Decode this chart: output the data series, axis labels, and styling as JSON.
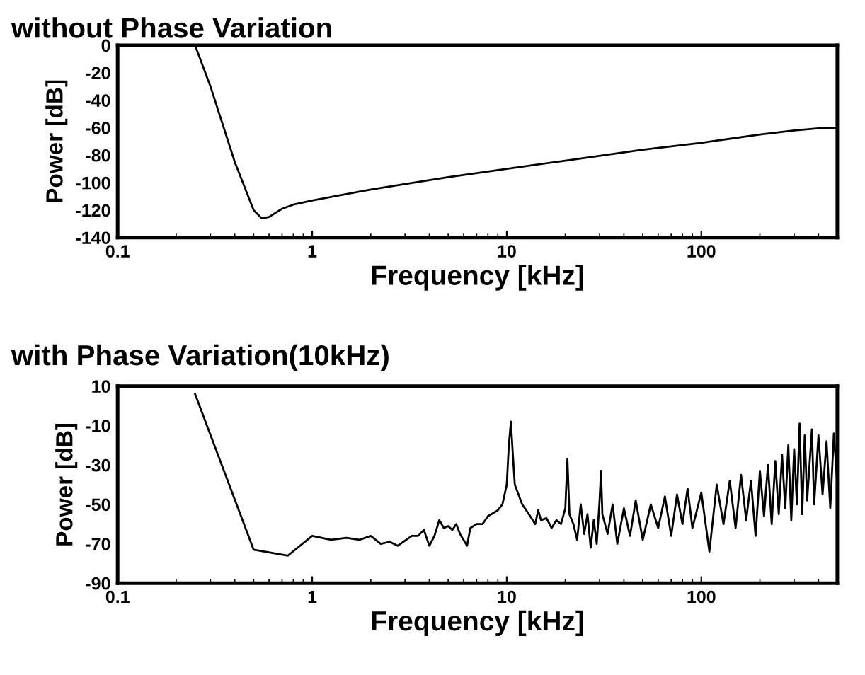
{
  "chart_data": [
    {
      "type": "line",
      "title": "without Phase Variation",
      "xlabel": "Frequency [kHz]",
      "ylabel": "Power [dB]",
      "log": "x",
      "grid": false,
      "legend": false,
      "xlim": [
        0.1,
        500
      ],
      "xticks": [
        0.1,
        1,
        10,
        100
      ],
      "ylim": [
        -140,
        0
      ],
      "yticks": [
        -140,
        -120,
        -100,
        -80,
        -60,
        -40,
        -20,
        0
      ],
      "series": [
        {
          "color": "#000000",
          "x": [
            0.25,
            0.3,
            0.4,
            0.5,
            0.55,
            0.6,
            0.7,
            0.8,
            1,
            2,
            5,
            10,
            20,
            50,
            100,
            200,
            300,
            400,
            500
          ],
          "values": [
            0,
            -30,
            -85,
            -120,
            -126,
            -125,
            -119,
            -116,
            -113,
            -105,
            -96,
            -90,
            -84,
            -76,
            -71,
            -65,
            -62,
            -60.5,
            -60
          ]
        }
      ]
    },
    {
      "type": "line",
      "title": "with Phase Variation(10kHz)",
      "xlabel": "Frequency [kHz]",
      "ylabel": "Power [dB]",
      "log": "x",
      "grid": false,
      "legend": false,
      "xlim": [
        0.1,
        500
      ],
      "xticks": [
        0.1,
        1,
        10,
        100
      ],
      "ylim": [
        -90,
        10
      ],
      "yticks": [
        -90,
        -70,
        -50,
        -30,
        -10,
        10
      ],
      "series": [
        {
          "color": "#000000",
          "x": [
            0.25,
            0.5,
            0.75,
            1,
            1.25,
            1.5,
            1.75,
            2,
            2.25,
            2.5,
            2.75,
            3.25,
            3.5,
            3.75,
            4,
            4.25,
            4.5,
            4.75,
            5,
            5.25,
            5.5,
            5.75,
            6.25,
            6.5,
            7,
            7.5,
            8,
            9,
            9.5,
            10,
            10.25,
            10.5,
            10.75,
            11,
            12,
            13,
            14,
            14.5,
            15,
            16,
            17,
            18,
            19,
            20,
            20.5,
            21,
            22,
            23,
            24,
            25,
            26,
            27,
            28,
            29,
            30,
            30.5,
            31,
            33,
            35,
            37,
            40,
            43,
            46,
            50,
            55,
            60,
            65,
            70,
            75,
            80,
            85,
            90,
            100,
            110,
            120,
            130,
            140,
            150,
            160,
            170,
            180,
            190,
            200,
            210,
            220,
            230,
            240,
            250,
            260,
            270,
            280,
            290,
            300,
            310,
            320,
            330,
            340,
            350,
            370,
            380,
            400,
            420,
            440,
            460,
            480,
            500
          ],
          "values": [
            6,
            -73,
            -76,
            -66,
            -68,
            -67,
            -68,
            -66,
            -70,
            -69,
            -71,
            -66,
            -66,
            -63,
            -71,
            -66,
            -58,
            -62,
            -61,
            -63,
            -60,
            -65,
            -71,
            -62,
            -60,
            -60,
            -56,
            -53,
            -50,
            -40,
            -20,
            -8,
            -25,
            -40,
            -50,
            -55,
            -60,
            -53,
            -58,
            -57,
            -62,
            -58,
            -60,
            -52,
            -27,
            -55,
            -60,
            -68,
            -50,
            -65,
            -55,
            -72,
            -58,
            -70,
            -48,
            -33,
            -55,
            -65,
            -50,
            -70,
            -52,
            -66,
            -48,
            -68,
            -50,
            -62,
            -46,
            -66,
            -45,
            -60,
            -42,
            -62,
            -44,
            -74,
            -40,
            -60,
            -38,
            -62,
            -35,
            -58,
            -38,
            -66,
            -33,
            -56,
            -30,
            -60,
            -28,
            -55,
            -25,
            -52,
            -20,
            -58,
            -22,
            -50,
            -9,
            -55,
            -15,
            -48,
            -12,
            -50,
            -15,
            -45,
            -18,
            -52,
            -14,
            -40
          ]
        }
      ]
    }
  ]
}
